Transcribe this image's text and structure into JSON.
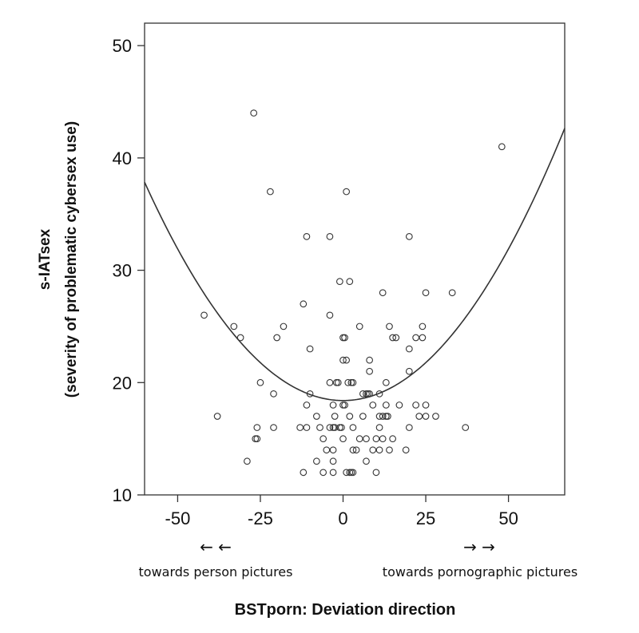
{
  "chart_data": {
    "type": "scatter",
    "title": "",
    "xlabel": "BSTporn: Deviation direction",
    "ylabel_lines": [
      "s-IATsex",
      "(severity of problematic cybersex use)"
    ],
    "xlim": [
      -60,
      67
    ],
    "ylim": [
      10,
      52
    ],
    "xticks": [
      -50,
      -25,
      0,
      25,
      50
    ],
    "xtick_labels": [
      "-50",
      "-25",
      "0",
      "25",
      "50"
    ],
    "yticks": [
      10,
      20,
      30,
      40,
      50
    ],
    "ytick_labels": [
      "10",
      "20",
      "30",
      "40",
      "50"
    ],
    "grid": false,
    "annotations": {
      "left_arrows": "← ←",
      "right_arrows": "→ →",
      "left_text": "towards person pictures",
      "right_text": "towards pornographic pictures"
    },
    "fit_curve": {
      "type": "quadratic",
      "coefficients": [
        18.4,
        0.0,
        0.0054
      ]
    },
    "points": [
      [
        -27,
        44
      ],
      [
        48,
        41
      ],
      [
        -22,
        37
      ],
      [
        1,
        37
      ],
      [
        -11,
        33
      ],
      [
        -4,
        33
      ],
      [
        20,
        33
      ],
      [
        -1,
        29
      ],
      [
        2,
        29
      ],
      [
        -12,
        27
      ],
      [
        12,
        28
      ],
      [
        25,
        28
      ],
      [
        33,
        28
      ],
      [
        -4,
        26
      ],
      [
        -42,
        26
      ],
      [
        -33,
        25
      ],
      [
        -18,
        25
      ],
      [
        5,
        25
      ],
      [
        14,
        25
      ],
      [
        24,
        25
      ],
      [
        -31,
        24
      ],
      [
        -20,
        24
      ],
      [
        0,
        24
      ],
      [
        0.5,
        24
      ],
      [
        15,
        24
      ],
      [
        16,
        24
      ],
      [
        22,
        24
      ],
      [
        24,
        24
      ],
      [
        -10,
        23
      ],
      [
        20,
        23
      ],
      [
        0,
        22
      ],
      [
        1,
        22
      ],
      [
        8,
        22
      ],
      [
        8,
        21
      ],
      [
        20,
        21
      ],
      [
        -25,
        20
      ],
      [
        -4,
        20
      ],
      [
        -2,
        20
      ],
      [
        -1.5,
        20
      ],
      [
        1.5,
        20
      ],
      [
        2.5,
        20
      ],
      [
        3,
        20
      ],
      [
        13,
        20
      ],
      [
        -21,
        19
      ],
      [
        -10,
        19
      ],
      [
        6,
        19
      ],
      [
        7,
        19
      ],
      [
        7.5,
        19
      ],
      [
        8,
        19
      ],
      [
        11,
        19
      ],
      [
        -11,
        18
      ],
      [
        -3,
        18
      ],
      [
        0,
        18
      ],
      [
        0.5,
        18
      ],
      [
        9,
        18
      ],
      [
        13,
        18
      ],
      [
        17,
        18
      ],
      [
        22,
        18
      ],
      [
        25,
        18
      ],
      [
        -38,
        17
      ],
      [
        -8,
        17
      ],
      [
        -2.5,
        17
      ],
      [
        2,
        17
      ],
      [
        6,
        17
      ],
      [
        11,
        17
      ],
      [
        12,
        17
      ],
      [
        13,
        17
      ],
      [
        13.5,
        17
      ],
      [
        23,
        17
      ],
      [
        25,
        17
      ],
      [
        28,
        17
      ],
      [
        -26,
        16
      ],
      [
        -21,
        16
      ],
      [
        -13,
        16
      ],
      [
        -11,
        16
      ],
      [
        -7,
        16
      ],
      [
        -4,
        16
      ],
      [
        -3,
        16
      ],
      [
        -2.5,
        16
      ],
      [
        -1,
        16
      ],
      [
        -0.5,
        16
      ],
      [
        3,
        16
      ],
      [
        11,
        16
      ],
      [
        20,
        16
      ],
      [
        37,
        16
      ],
      [
        -26,
        15
      ],
      [
        -26.5,
        15
      ],
      [
        -6,
        15
      ],
      [
        0,
        15
      ],
      [
        5,
        15
      ],
      [
        7,
        15
      ],
      [
        10,
        15
      ],
      [
        12,
        15
      ],
      [
        15,
        15
      ],
      [
        -5,
        14
      ],
      [
        -3,
        14
      ],
      [
        3,
        14
      ],
      [
        4,
        14
      ],
      [
        9,
        14
      ],
      [
        11,
        14
      ],
      [
        14,
        14
      ],
      [
        19,
        14
      ],
      [
        -29,
        13
      ],
      [
        -8,
        13
      ],
      [
        -3,
        13
      ],
      [
        7,
        13
      ],
      [
        -12,
        12
      ],
      [
        -6,
        12
      ],
      [
        -3,
        12
      ],
      [
        1,
        12
      ],
      [
        2,
        12
      ],
      [
        2.5,
        12
      ],
      [
        3,
        12
      ],
      [
        10,
        12
      ]
    ]
  }
}
